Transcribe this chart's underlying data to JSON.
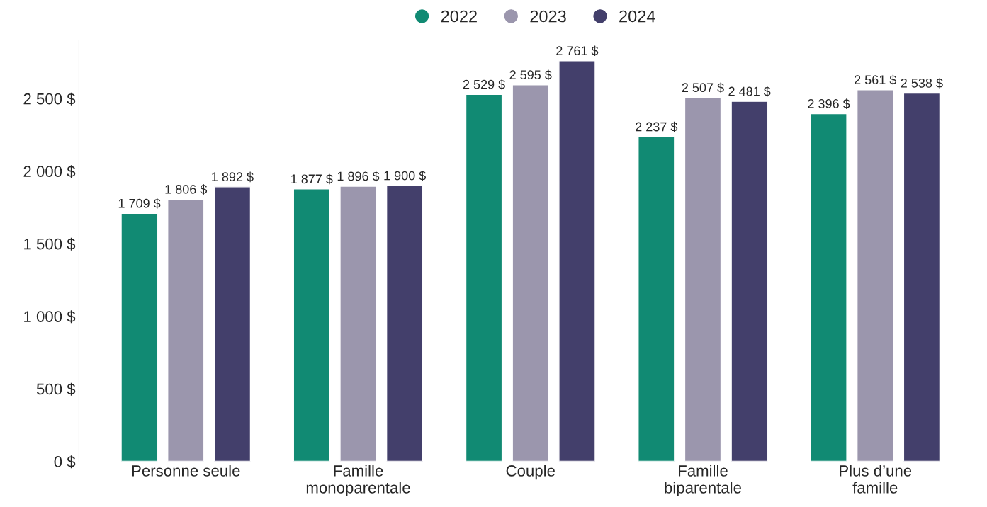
{
  "chart_data": {
    "type": "bar",
    "categories": [
      "Personne seule",
      "Famille\nmonoparentale",
      "Couple",
      "Famille\nbiparentale",
      "Plus d’une\nfamille"
    ],
    "series": [
      {
        "name": "2022",
        "color": "#118a73",
        "values": [
          1709,
          1877,
          2529,
          2237,
          2396
        ],
        "value_labels": [
          "1 709 $",
          "1 877 $",
          "2 529 $",
          "2 237 $",
          "2 396 $"
        ]
      },
      {
        "name": "2023",
        "color": "#9b96ad",
        "values": [
          1806,
          1896,
          2595,
          2507,
          2561
        ],
        "value_labels": [
          "1 806 $",
          "1 896 $",
          "2 595 $",
          "2 507 $",
          "2 561 $"
        ]
      },
      {
        "name": "2024",
        "color": "#433f6b",
        "values": [
          1892,
          1900,
          2761,
          2481,
          2538
        ],
        "value_labels": [
          "1 892 $",
          "1 900 $",
          "2 761 $",
          "2 481 $",
          "2 538 $"
        ]
      }
    ],
    "yticks": [
      {
        "value": 0,
        "label": "0 $"
      },
      {
        "value": 500,
        "label": "500 $"
      },
      {
        "value": 1000,
        "label": "1 000 $"
      },
      {
        "value": 1500,
        "label": "1 500 $"
      },
      {
        "value": 2000,
        "label": "2 000 $"
      },
      {
        "value": 2500,
        "label": "2 500 $"
      }
    ],
    "ylim": [
      0,
      2900
    ],
    "grid": false,
    "legend": "top"
  }
}
